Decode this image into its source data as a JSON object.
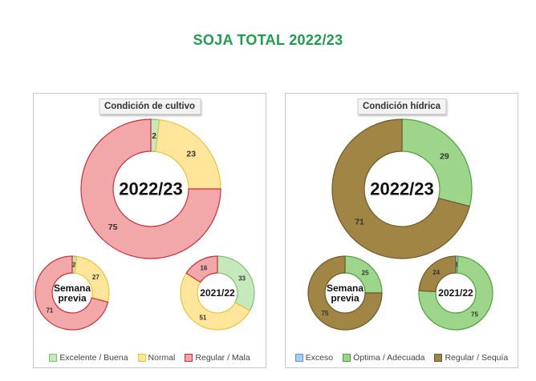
{
  "title": "SOJA TOTAL 2022/23",
  "colors": {
    "title": "#1e9e4b",
    "excelente_buena": "#c6e8bd",
    "normal": "#ffe69a",
    "regular_mala": "#f2a8a8",
    "exceso": "#a9cdef",
    "optima_adecuada": "#9dd68a",
    "regular_sequia": "#a08545"
  },
  "chart_data": [
    {
      "type": "pie",
      "title": "Condición de cultivo",
      "legend": [
        "Excelente / Buena",
        "Normal",
        "Regular / Mala"
      ],
      "donuts": [
        {
          "label": "2022/23",
          "values": [
            2,
            23,
            75
          ]
        },
        {
          "label": "Semana previa",
          "values": [
            2,
            27,
            71
          ]
        },
        {
          "label": "2021/22",
          "values": [
            33,
            51,
            16
          ]
        }
      ]
    },
    {
      "type": "pie",
      "title": "Condición hídrica",
      "legend": [
        "Exceso",
        "Óptima / Adecuada",
        "Regular / Sequía"
      ],
      "donuts": [
        {
          "label": "2022/23",
          "values": [
            0,
            29,
            71
          ]
        },
        {
          "label": "Semana previa",
          "values": [
            0,
            25,
            75
          ]
        },
        {
          "label": "2021/22",
          "values": [
            1,
            75,
            24
          ]
        }
      ]
    }
  ]
}
